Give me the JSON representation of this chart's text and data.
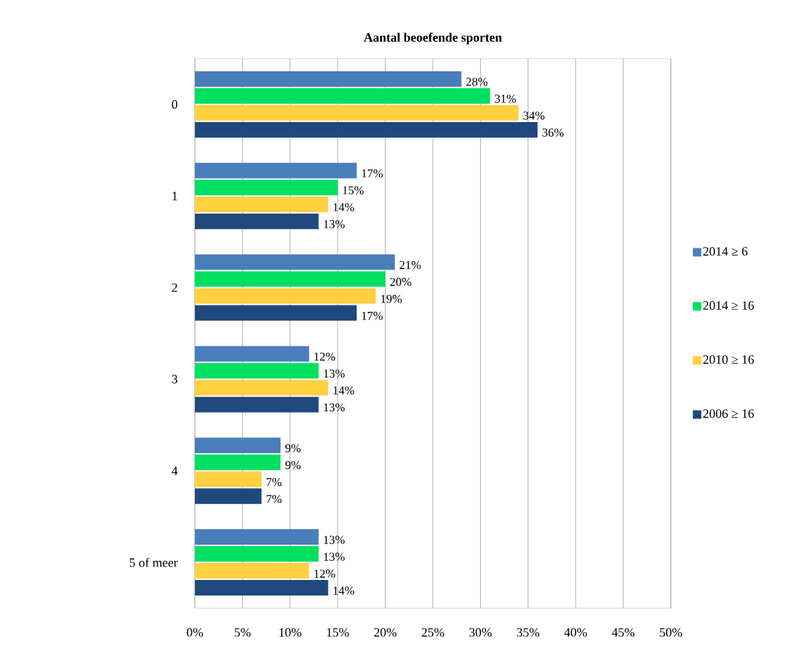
{
  "chart_data": {
    "type": "bar",
    "orientation": "horizontal",
    "title": "Aantal beoefende sporten",
    "categories": [
      "0",
      "1",
      "2",
      "3",
      "4",
      "5 of meer"
    ],
    "series": [
      {
        "name": "2014 ≥ 6",
        "color": "#4a7ebb",
        "values": [
          28,
          17,
          21,
          12,
          9,
          13
        ],
        "value_labels": [
          "28%",
          "17%",
          "21%",
          "12%",
          "9%",
          "13%"
        ]
      },
      {
        "name": "2014 ≥ 16",
        "color": "#00e060",
        "values": [
          31,
          15,
          20,
          13,
          9,
          13
        ],
        "value_labels": [
          "31%",
          "15%",
          "20%",
          "13%",
          "9%",
          "13%"
        ]
      },
      {
        "name": "2010 ≥ 16",
        "color": "#ffd040",
        "values": [
          34,
          14,
          19,
          14,
          7,
          12
        ],
        "value_labels": [
          "34%",
          "14%",
          "19%",
          "14%",
          "7%",
          "12%"
        ]
      },
      {
        "name": "2006 ≥ 16",
        "color": "#1f497d",
        "values": [
          36,
          13,
          17,
          13,
          7,
          14
        ],
        "value_labels": [
          "36%",
          "13%",
          "17%",
          "13%",
          "7%",
          "14%"
        ]
      }
    ],
    "xlim": [
      0,
      50
    ],
    "xticks": [
      {
        "value": 0,
        "label": "0%"
      },
      {
        "value": 5,
        "label": "5%"
      },
      {
        "value": 10,
        "label": "10%"
      },
      {
        "value": 15,
        "label": "15%"
      },
      {
        "value": 20,
        "label": "20%"
      },
      {
        "value": 25,
        "label": "25%"
      },
      {
        "value": 30,
        "label": "30%"
      },
      {
        "value": 35,
        "label": "35%"
      },
      {
        "value": 40,
        "label": "40%"
      },
      {
        "value": 45,
        "label": "45%"
      },
      {
        "value": 50,
        "label": "50%"
      }
    ],
    "grid": "x",
    "legend": "right"
  }
}
